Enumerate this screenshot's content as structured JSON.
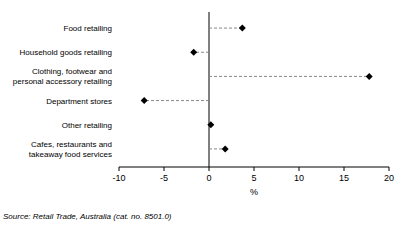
{
  "chart_data": {
    "type": "lollipop",
    "orientation": "horizontal",
    "categories": [
      "Food retailing",
      "Household goods retailing",
      "Clothing, footwear and personal accessory retailing",
      "Department stores",
      "Other retailing",
      "Cafes, restaurants and takeaway food services"
    ],
    "values": [
      3.7,
      -1.7,
      17.8,
      -7.2,
      0.2,
      1.8
    ],
    "color": "#000000",
    "marker": "diamond",
    "line_style": "dashed",
    "x_label": "%",
    "xlim": [
      -10,
      20
    ],
    "xticks": [
      -10,
      -5,
      0,
      5,
      10,
      15,
      20
    ],
    "grid": false,
    "annotation": "Source: Retail Trade, Australia (cat. no. 8501.0)"
  }
}
